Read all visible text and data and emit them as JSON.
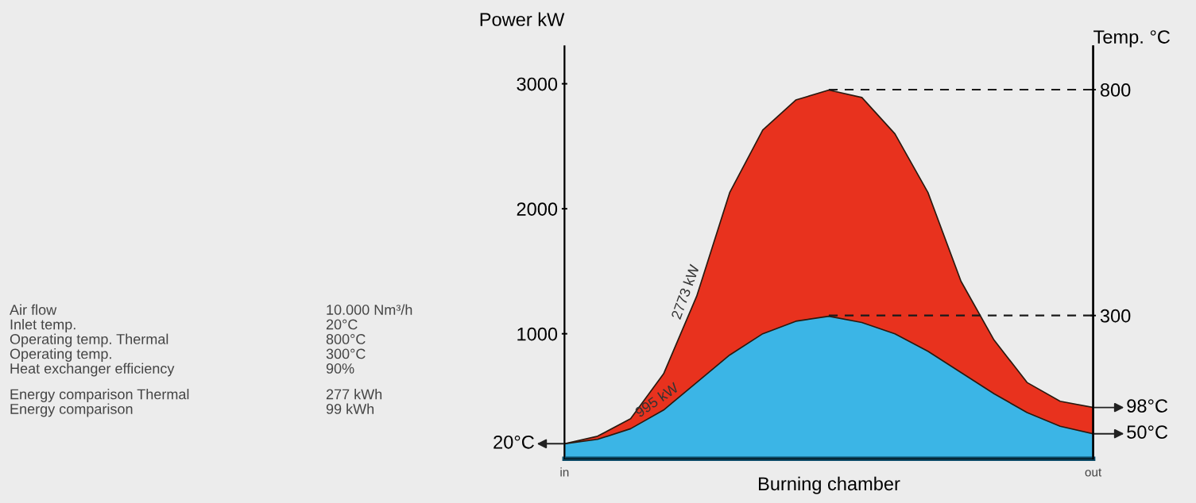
{
  "chart_data": {
    "type": "area",
    "xlabel": "Burning chamber",
    "ylabel": "Power kW",
    "y2label": "Temp. °C",
    "categories": [
      "in",
      null,
      null,
      null,
      null,
      null,
      null,
      null,
      null,
      null,
      null,
      null,
      null,
      null,
      null,
      null,
      "out"
    ],
    "ylim": [
      0,
      3300
    ],
    "yticks": [
      1000,
      2000,
      3000
    ],
    "y2lim": [
      -17,
      896
    ],
    "y2ticks": [
      300,
      800
    ],
    "series": [
      {
        "color": "#e8321e",
        "values": [
          120,
          180,
          320,
          680,
          1300,
          2130,
          2630,
          2870,
          2950,
          2890,
          2600,
          2130,
          1420,
          950,
          610,
          460,
          410
        ]
      },
      {
        "color": "#3bb5e6",
        "values": [
          120,
          155,
          240,
          390,
          610,
          830,
          1000,
          1100,
          1140,
          1090,
          1000,
          860,
          690,
          520,
          370,
          260,
          200
        ]
      }
    ],
    "ref_lines": [
      {
        "axis": "y2",
        "value": 800,
        "line_style": "dashed",
        "color": "#1a1a1a"
      },
      {
        "axis": "y2",
        "value": 300,
        "line_style": "dashed",
        "color": "#1a1a1a"
      }
    ],
    "annotations": [
      "2773 kW",
      "995 kW",
      {
        "text": "20°C",
        "x": "in",
        "y": 120
      },
      {
        "text": "98°C",
        "x": "out",
        "y": 410
      },
      {
        "text": "50°C",
        "x": "out",
        "y": 200
      },
      "Air flow",
      "10.000 Nm³/h",
      "Inlet temp.",
      "20°C",
      "Operating temp. Thermal",
      "800°C",
      "Operating temp.",
      "300°C",
      "Heat exchanger efficiency",
      "90%",
      "Energy comparison Thermal",
      "277 kWh",
      "Energy comparison",
      "99 kWh"
    ],
    "legend": false,
    "grid": false
  }
}
